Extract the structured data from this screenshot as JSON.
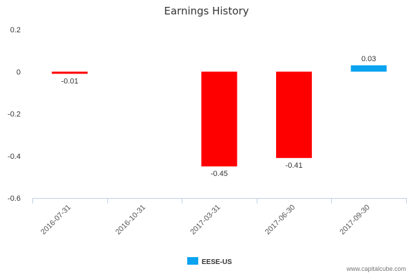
{
  "chart_data": {
    "type": "bar",
    "title": "Earnings History",
    "categories": [
      "2016-07-31",
      "2016-10-31",
      "2017-03-31",
      "2017-06-30",
      "2017-09-30"
    ],
    "series": [
      {
        "name": "EESE-US",
        "values": [
          -0.01,
          null,
          -0.45,
          -0.41,
          0.03
        ],
        "value_labels": [
          "-0.01",
          "",
          "-0.45",
          "-0.41",
          "0.03"
        ]
      }
    ],
    "ylim": [
      -0.6,
      0.2
    ],
    "yticks": [
      0.2,
      0,
      -0.2,
      -0.4,
      -0.6
    ],
    "ytick_labels": [
      "0.2",
      "0",
      "-0.2",
      "-0.4",
      "-0.6"
    ],
    "xlabel": "",
    "ylabel": "",
    "grid": false,
    "legend_position": "bottom-center",
    "colors": {
      "negative": "#ff0000",
      "positive": "#0aa3f0",
      "axis": "#c0d0e0"
    }
  },
  "credit": "www.capitalcube.com"
}
